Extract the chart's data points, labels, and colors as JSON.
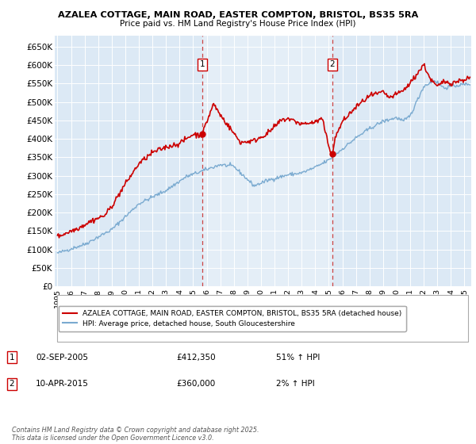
{
  "title1": "AZALEA COTTAGE, MAIN ROAD, EASTER COMPTON, BRISTOL, BS35 5RA",
  "title2": "Price paid vs. HM Land Registry's House Price Index (HPI)",
  "background_color": "#ffffff",
  "plot_bg_color": "#dce9f5",
  "red_line_label": "AZALEA COTTAGE, MAIN ROAD, EASTER COMPTON, BRISTOL, BS35 5RA (detached house)",
  "blue_line_label": "HPI: Average price, detached house, South Gloucestershire",
  "footer": "Contains HM Land Registry data © Crown copyright and database right 2025.\nThis data is licensed under the Open Government Licence v3.0.",
  "sale1": {
    "label": "1",
    "date": "02-SEP-2005",
    "price": "£412,350",
    "hpi": "51% ↑ HPI",
    "x_year": 2005.67
  },
  "sale2": {
    "label": "2",
    "date": "10-APR-2015",
    "price": "£360,000",
    "hpi": "2% ↑ HPI",
    "x_year": 2015.27
  },
  "ylim": [
    0,
    680000
  ],
  "yticks": [
    0,
    50000,
    100000,
    150000,
    200000,
    250000,
    300000,
    350000,
    400000,
    450000,
    500000,
    550000,
    600000,
    650000
  ],
  "xlim_start": 1994.8,
  "xlim_end": 2025.5,
  "red_color": "#cc0000",
  "blue_color": "#7aaad0",
  "shade_color": "#dce9f5",
  "dashed_red": "#cc4444",
  "marker_red": "#cc0000"
}
